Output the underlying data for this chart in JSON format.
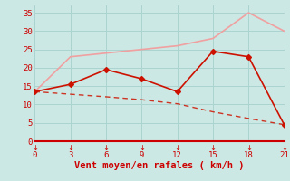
{
  "background_color": "#cce8e4",
  "grid_color": "#aad4d0",
  "xlim": [
    0,
    21
  ],
  "ylim": [
    0,
    37
  ],
  "xticks": [
    0,
    3,
    6,
    9,
    12,
    15,
    18,
    21
  ],
  "yticks": [
    0,
    5,
    10,
    15,
    20,
    25,
    30,
    35
  ],
  "xlabel": "Vent moyen/en rafales ( km/h )",
  "xlabel_color": "#cc0000",
  "tick_color": "#cc0000",
  "axis_line_color": "#cc0000",
  "line1": {
    "x": [
      0,
      3,
      9,
      12,
      15,
      18,
      21
    ],
    "y": [
      13.5,
      23,
      25,
      26,
      28,
      35,
      30
    ],
    "color": "#f0a0a0",
    "linewidth": 1.2
  },
  "line2": {
    "x": [
      0,
      3,
      6,
      9,
      12,
      15,
      18,
      21
    ],
    "y": [
      13.5,
      15.5,
      19.5,
      17,
      13.5,
      24.5,
      23,
      4.5
    ],
    "color": "#cc1100",
    "linewidth": 1.2,
    "marker": "D",
    "markersize": 3
  },
  "line3": {
    "x": [
      0,
      3,
      6,
      9,
      12,
      15,
      18,
      21
    ],
    "y": [
      13.5,
      12.8,
      12.1,
      11.3,
      10.2,
      8.0,
      6.2,
      4.5
    ],
    "color": "#cc3322",
    "linewidth": 1.0,
    "linestyle": "--"
  },
  "tick_fontsize": 6.5,
  "xlabel_fontsize": 7.5
}
